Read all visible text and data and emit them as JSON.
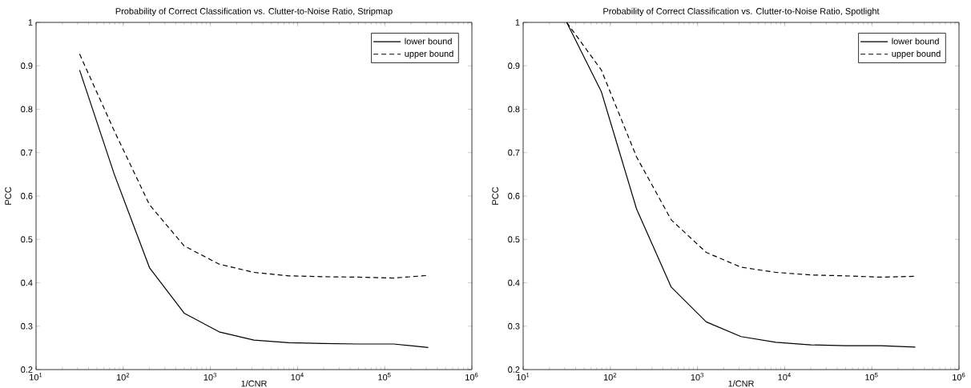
{
  "chart_data": [
    {
      "type": "line",
      "title": "Probability of Correct Classification vs. Clutter-to-Noise Ratio, Stripmap",
      "xlabel": "1/CNR",
      "ylabel": "PCC",
      "log": "x",
      "grid": false,
      "legend": "top right",
      "marker": "none",
      "xlim": [
        10,
        1000000
      ],
      "ylim": [
        0.2,
        1
      ],
      "xticks": [
        {
          "value": 10,
          "label": "10$^{1}$"
        },
        {
          "value": 100,
          "label": "10$^{2}$"
        },
        {
          "value": 1000,
          "label": "10$^{3}$"
        },
        {
          "value": 10000,
          "label": "10$^{4}$"
        },
        {
          "value": 100000,
          "label": "10$^{5}$"
        },
        {
          "value": 1000000,
          "label": "10$^{6}$"
        }
      ],
      "yticks": [
        0.2,
        0.3,
        0.4,
        0.5,
        0.6,
        0.7,
        0.8,
        0.9,
        1
      ],
      "x": [
        31.6,
        79,
        200,
        500,
        1260,
        3160,
        7940,
        20000,
        50100,
        126000,
        316000
      ],
      "series": [
        {
          "name": "lower bound",
          "color": "#000000",
          "line_style": "solid",
          "values": [
            0.89,
            0.65,
            0.435,
            0.33,
            0.287,
            0.268,
            0.262,
            0.26,
            0.259,
            0.259,
            0.251
          ]
        },
        {
          "name": "upper bound",
          "color": "#000000",
          "line_style": "dashed",
          "values": [
            0.927,
            0.75,
            0.58,
            0.485,
            0.443,
            0.424,
            0.416,
            0.414,
            0.413,
            0.411,
            0.417
          ]
        }
      ]
    },
    {
      "type": "line",
      "title": "Probability of Correct Classification vs. Clutter-to-Noise Ratio, Spotlight",
      "xlabel": "1/CNR",
      "ylabel": "PCC",
      "log": "x",
      "grid": false,
      "legend": "top right",
      "marker": "none",
      "xlim": [
        10,
        1000000
      ],
      "ylim": [
        0.2,
        1
      ],
      "xticks": [
        {
          "value": 10,
          "label": "10$^{1}$"
        },
        {
          "value": 100,
          "label": "10$^{2}$"
        },
        {
          "value": 1000,
          "label": "10$^{3}$"
        },
        {
          "value": 10000,
          "label": "10$^{4}$"
        },
        {
          "value": 100000,
          "label": "10$^{5}$"
        },
        {
          "value": 1000000,
          "label": "10$^{6}$"
        }
      ],
      "yticks": [
        0.2,
        0.3,
        0.4,
        0.5,
        0.6,
        0.7,
        0.8,
        0.9,
        1
      ],
      "x": [
        31.6,
        79,
        200,
        500,
        1260,
        3160,
        7940,
        20000,
        50100,
        126000,
        316000
      ],
      "series": [
        {
          "name": "lower bound",
          "color": "#000000",
          "line_style": "solid",
          "values": [
            1.0,
            0.84,
            0.57,
            0.39,
            0.31,
            0.276,
            0.263,
            0.257,
            0.255,
            0.255,
            0.252
          ]
        },
        {
          "name": "upper bound",
          "color": "#000000",
          "line_style": "dashed",
          "values": [
            1.0,
            0.89,
            0.69,
            0.545,
            0.47,
            0.436,
            0.424,
            0.418,
            0.416,
            0.413,
            0.415
          ]
        }
      ]
    }
  ]
}
